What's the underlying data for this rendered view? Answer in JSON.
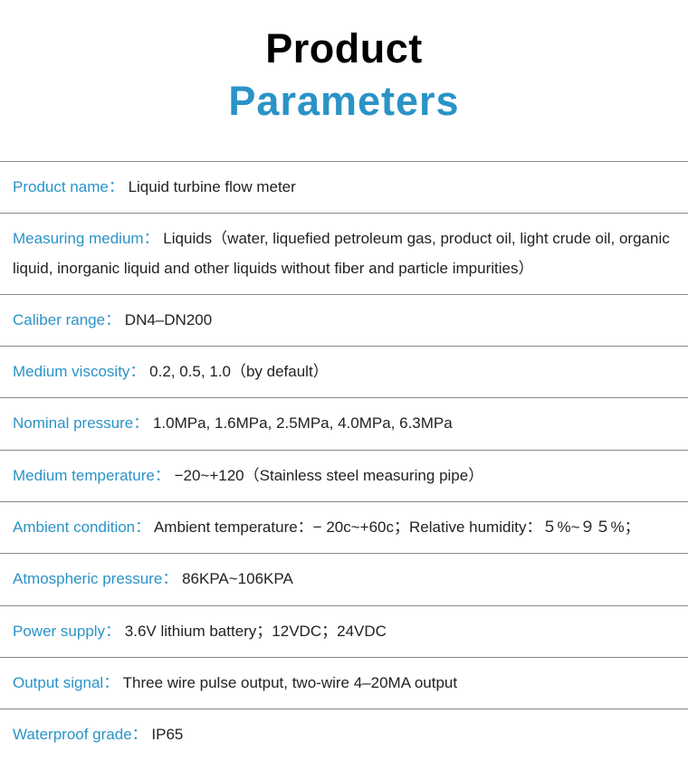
{
  "colors": {
    "title_black": "#000000",
    "accent_blue": "#2a93c7",
    "text_black": "#222222",
    "border_gray": "#888888",
    "background": "#ffffff"
  },
  "typography": {
    "title_fontsize": 45,
    "title_fontweight": 900,
    "body_fontsize": 17,
    "line_height": 1.9
  },
  "title": {
    "line1": "Product",
    "line2": "Parameters"
  },
  "rows": [
    {
      "label": "Product name",
      "value": "Liquid turbine flow meter"
    },
    {
      "label": "Measuring medium",
      "value": "Liquids（water, liquefied petroleum gas, product oil, light crude oil, organic liquid, inorganic liquid and other liquids without fiber and particle impurities）"
    },
    {
      "label": "Caliber range",
      "value": "DN4–DN200"
    },
    {
      "label": "Medium viscosity",
      "value": "0.2, 0.5, 1.0（by default）"
    },
    {
      "label": "Nominal pressure",
      "value": "1.0MPa, 1.6MPa, 2.5MPa, 4.0MPa, 6.3MPa"
    },
    {
      "label": "Medium temperature",
      "value": "−20~+120（Stainless steel measuring pipe）"
    },
    {
      "label": "Ambient condition",
      "value": "Ambient temperature：− 20c~+60c；Relative humidity：５%~９５%；"
    },
    {
      "label": "Atmospheric pressure",
      "value": "86KPA~106KPA"
    },
    {
      "label": "Power supply",
      "value": "3.6V lithium battery；12VDC；24VDC"
    },
    {
      "label": "Output signal",
      "value": "Three wire pulse output, two-wire 4–20MA output"
    },
    {
      "label": "Waterproof grade",
      "value": "IP65"
    }
  ]
}
